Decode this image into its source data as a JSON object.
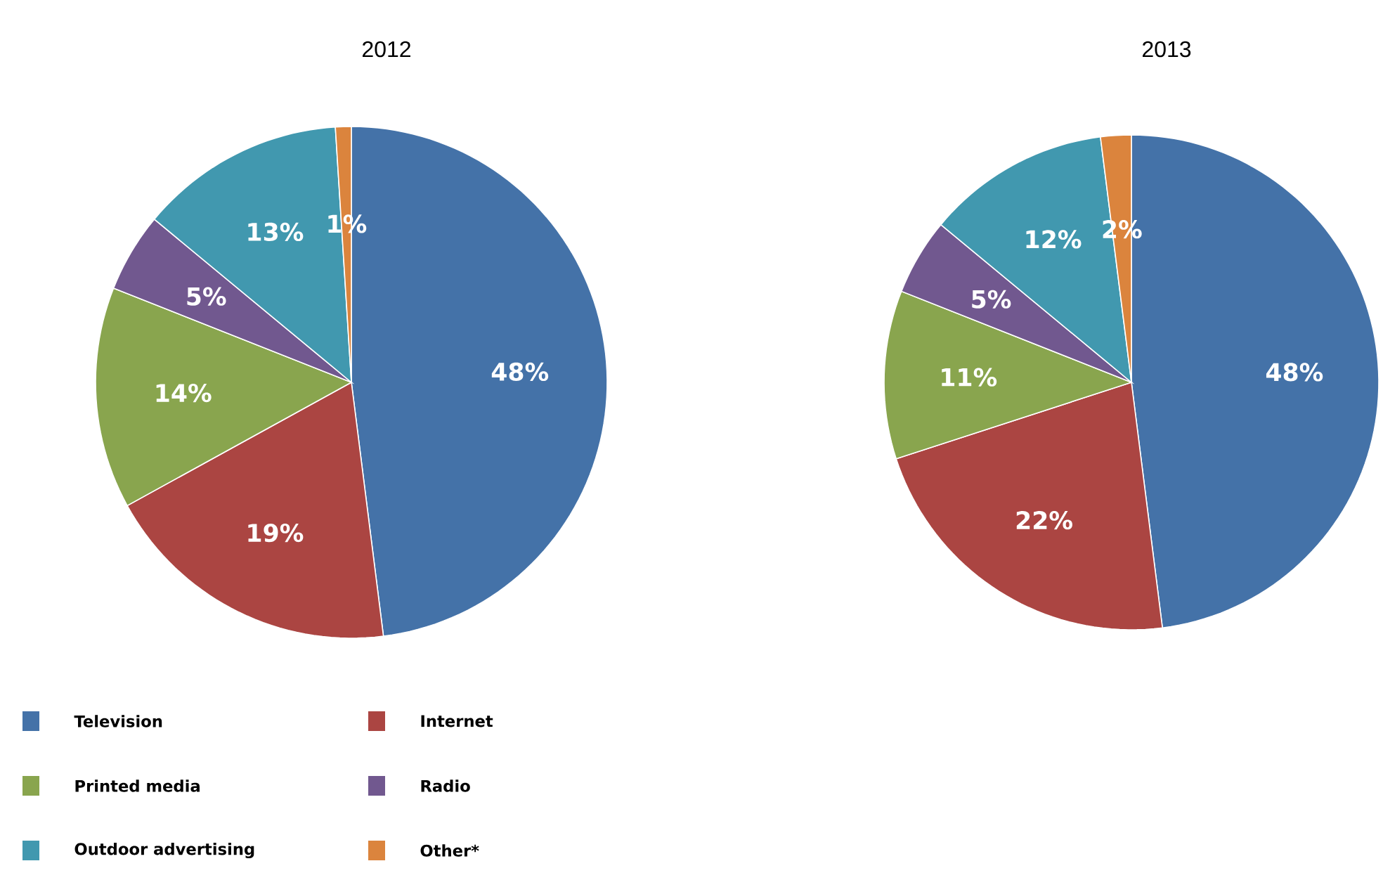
{
  "chart_data": [
    {
      "type": "pie",
      "title": "2012",
      "categories": [
        "Television",
        "Internet",
        "Printed media",
        "Radio",
        "Outdoor advertising",
        "Other*"
      ],
      "values": [
        48,
        19,
        14,
        5,
        13,
        1
      ],
      "value_labels": [
        "48%",
        "19%",
        "14%",
        "5%",
        "13%",
        "1%"
      ],
      "colors": [
        "#4472a8",
        "#ab4542",
        "#89a54e",
        "#71588f",
        "#4198af",
        "#db843d"
      ],
      "legend": "bottom"
    },
    {
      "type": "pie",
      "title": "2013",
      "categories": [
        null,
        null,
        null,
        null,
        null,
        null
      ],
      "values": [
        48,
        22,
        11,
        5,
        12,
        2
      ],
      "value_labels": [
        "48%",
        "22%",
        "11%",
        "5%",
        "12%",
        "2%"
      ],
      "colors": [
        "#4472a8",
        "#ab4542",
        "#89a54e",
        "#71588f",
        "#4198af",
        "#db843d"
      ]
    }
  ]
}
